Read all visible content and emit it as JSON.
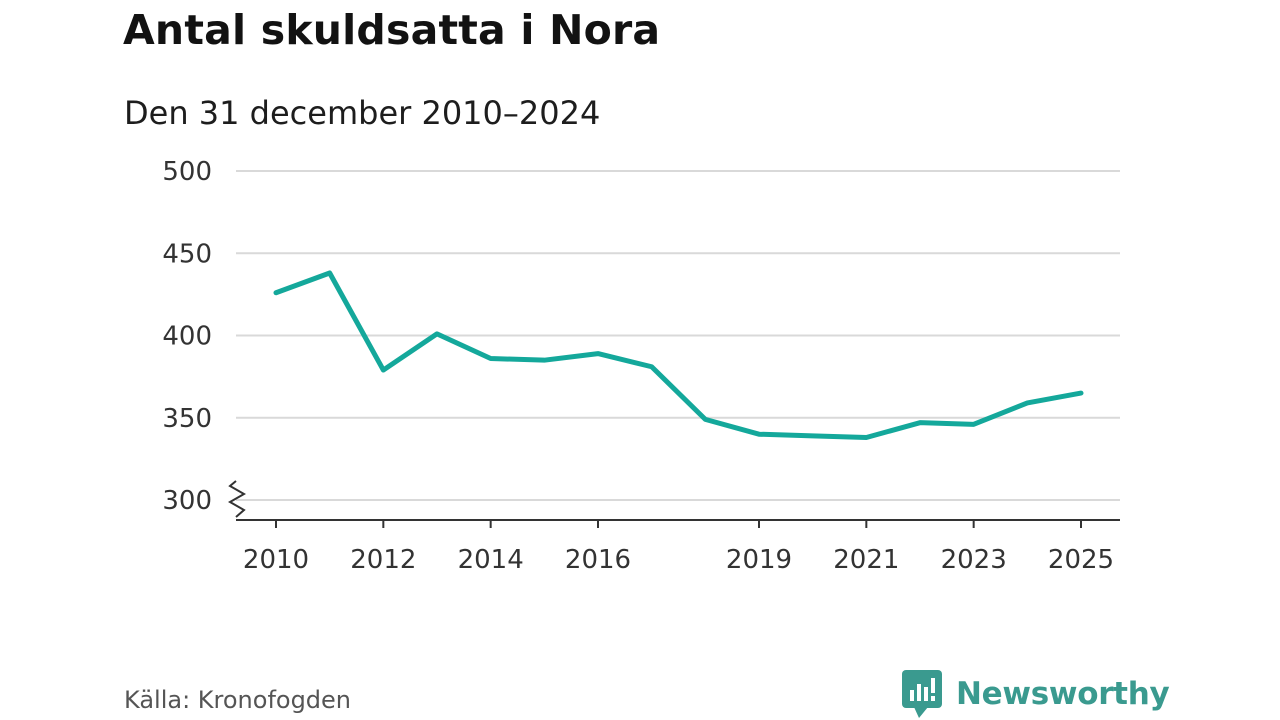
{
  "header": {
    "title": "Antal skuldsatta i Nora",
    "subtitle": "Den 31 december 2010–2024"
  },
  "footer": {
    "source": "Källa: Kronofogden",
    "brand": "Newsworthy"
  },
  "colors": {
    "line": "#14a89b",
    "grid": "#d9d9d9",
    "axis": "#333333",
    "brand": "#3a9a8f"
  },
  "icons": {
    "brand_logo": "newsworthy-logo-icon",
    "axis_break": "axis-break-icon"
  },
  "chart_data": {
    "type": "line",
    "title": "Antal skuldsatta i Nora",
    "subtitle": "Den 31 december 2010–2024",
    "xlabel": "",
    "ylabel": "",
    "xlim": [
      2010,
      2025
    ],
    "ylim": [
      300,
      500
    ],
    "y_axis_break": true,
    "grid": true,
    "x_ticks": [
      2010,
      2012,
      2014,
      2016,
      2019,
      2021,
      2023,
      2025
    ],
    "y_ticks": [
      300,
      350,
      400,
      450,
      500
    ],
    "series": [
      {
        "name": "Antal skuldsatta",
        "x": [
          2010,
          2011,
          2012,
          2013,
          2014,
          2015,
          2016,
          2017,
          2018,
          2019,
          2020,
          2021,
          2022,
          2023,
          2024,
          2025
        ],
        "values": [
          426,
          438,
          379,
          401,
          386,
          385,
          389,
          381,
          349,
          340,
          339,
          338,
          347,
          346,
          359,
          365
        ]
      }
    ]
  }
}
